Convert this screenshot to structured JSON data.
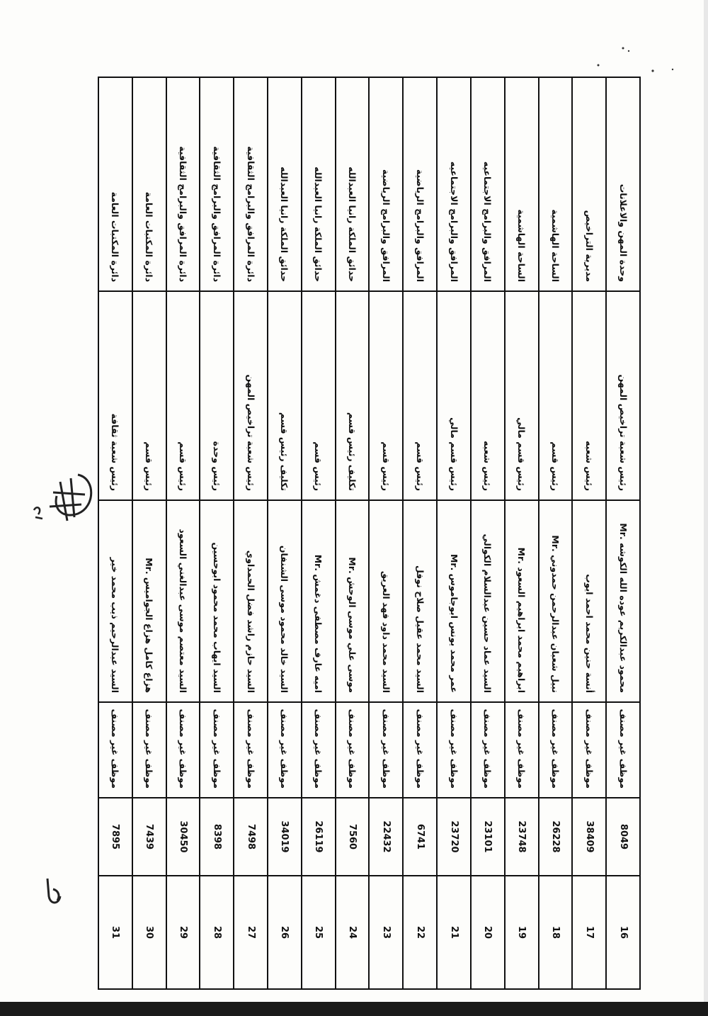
{
  "rows": [
    {
      "no": "16",
      "id": "8049",
      "status": "موظف غير مصنف",
      "name": "محمود عبدالكريم عوده الله الكوشه .Mr",
      "position": "رئيس شعبة تراخيص المهن",
      "department": "وحدة المهن والاعلانات"
    },
    {
      "no": "17",
      "id": "38409",
      "status": "موظف غير مصنف",
      "name": "أنسة حنين محمد احمد ايوب",
      "position": "رئيس شعبه",
      "department": "مديرية التراخيص"
    },
    {
      "no": "18",
      "id": "26228",
      "status": "موظف غير مصنف",
      "name": "نبيل شعبان عبدالرحمن حمدوني .Mr",
      "position": "رئيس قسم",
      "department": "الساحة الهاشمية"
    },
    {
      "no": "19",
      "id": "23748",
      "status": "موظف غير مصنف",
      "name": "ابراهيم محمد ابراهيم السعود .Mr",
      "position": "رئيس قسم مالي",
      "department": "الساحة الهاشمية"
    },
    {
      "no": "20",
      "id": "23101",
      "status": "موظف غير مصنف",
      "name": "السيد عماد حسين عبدالسلام الكوالي",
      "position": "رئيس شعبه",
      "department": "المرافق والبرامج الاجتماعيه"
    },
    {
      "no": "21",
      "id": "23720",
      "status": "موظف غير مصنف",
      "name": "عمر محمد يونس ابوجاموس .Mr",
      "position": "رئيس قسم مالي",
      "department": "المرافق والبرامج الاجتماعيه"
    },
    {
      "no": "22",
      "id": "6741",
      "status": "موظف غير مصنف",
      "name": "السيد محمد عقيل صلاح نوفل",
      "position": "رئيس قسم",
      "department": "المرافق والبرامج الرياضية"
    },
    {
      "no": "23",
      "id": "22432",
      "status": "موظف غير مصنف",
      "name": "السيد محمد داود فهد العريق",
      "position": "رئيس قسم",
      "department": "المرافق والبرامج الرياضية"
    },
    {
      "no": "24",
      "id": "7560",
      "status": "موظف غير مصنف",
      "name": "موسى علي موسى الوحش .Mr",
      "position": "تكليف رئيس قسم",
      "department": "حدائق الملكة رانيا العبدالله"
    },
    {
      "no": "25",
      "id": "26119",
      "status": "موظف غير مصنف",
      "name": "اميه عارف مصطفى دغمش .Mr",
      "position": "رئيس قسم",
      "department": "حدائق الملكة رانيا العبدالله"
    },
    {
      "no": "26",
      "id": "34019",
      "status": "موظف غير مصنف",
      "name": "السيد خالد محمود موسى الشنفان",
      "position": "تكليف رئيس قسم",
      "department": "حدائق الملكة رانيا العبدالله"
    },
    {
      "no": "27",
      "id": "7498",
      "status": "موظف غير مصنف",
      "name": "السيد حازم راشد فضل الحمداوي",
      "position": "رئيس شعبة تراخيص المهن",
      "department": "دائرة المرافق والبرامج الثقافية"
    },
    {
      "no": "28",
      "id": "8398",
      "status": "موظف غير مصنف",
      "name": "السيد ايهاب محمد محمود ابوحسين",
      "position": "رئيس وحدة",
      "department": "دائرة المرافق والبرامج الثقافية"
    },
    {
      "no": "29",
      "id": "30450",
      "status": "موظف غير مصنف",
      "name": "السيد معتصم موسى عبدالغني السعود",
      "position": "رئيس قسم",
      "department": "دائرة المرافق والبرامج الثقافية"
    },
    {
      "no": "30",
      "id": "7439",
      "status": "موظف غير مصنف",
      "name": "هزاع كامل هزاع الجواميس .Mr",
      "position": "رئيس قسم",
      "department": "دائرة المكتبات العامة"
    },
    {
      "no": "31",
      "id": "7895",
      "status": "موظف غير مصنف",
      "name": "السيد عبدالرحيم ذيب محمد خير",
      "position": "رئيس شعبة ثقافة",
      "department": "دائرة المكتبات العامة"
    }
  ]
}
